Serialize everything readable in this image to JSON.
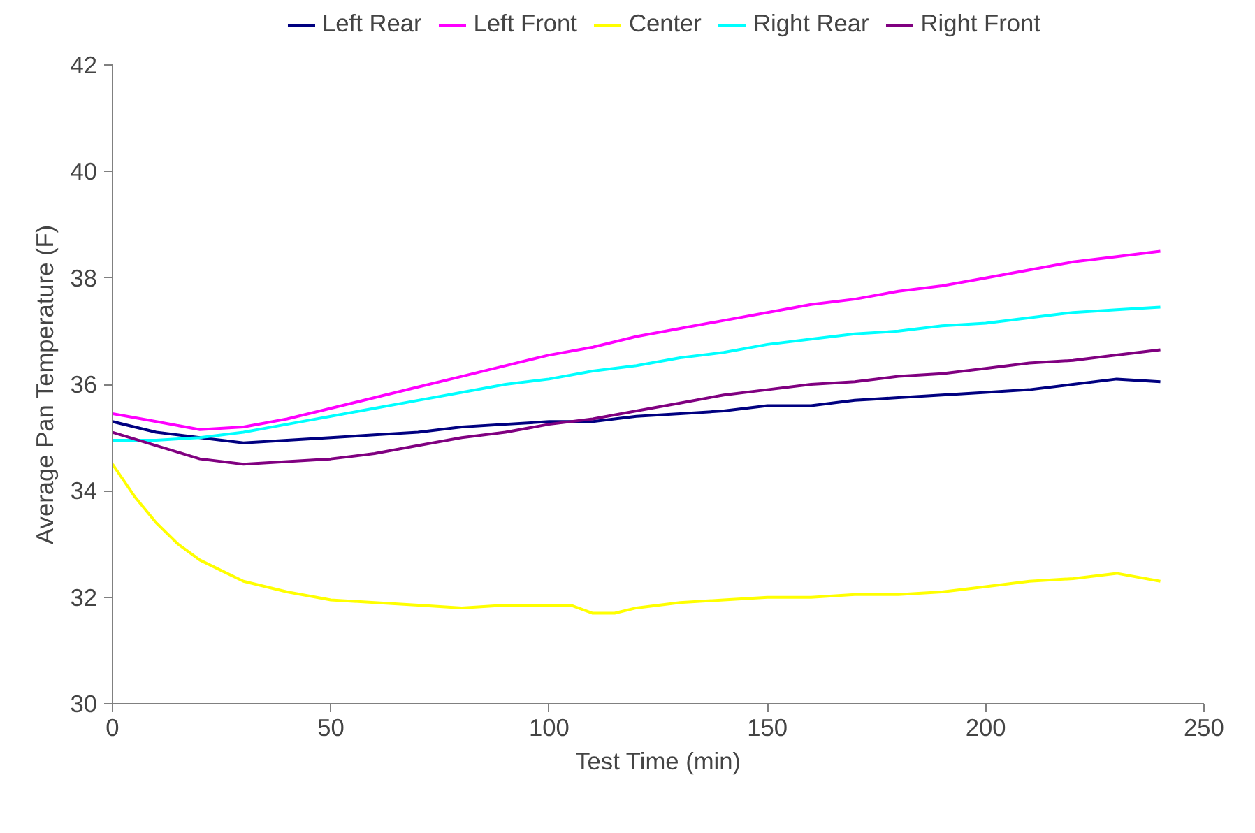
{
  "chart_data": {
    "type": "line",
    "xlabel": "Test Time (min)",
    "ylabel": "Average Pan Temperature (F)",
    "xlim": [
      0,
      250
    ],
    "xticks": [
      0,
      50,
      100,
      150,
      200,
      250
    ],
    "ylim": [
      30,
      42
    ],
    "yticks": [
      30,
      32,
      34,
      36,
      38,
      40,
      42
    ],
    "grid": false,
    "legend": "top",
    "marker": "none",
    "line_style": "solid",
    "series": [
      {
        "name": "Left Rear",
        "color": "#000080",
        "x": [
          0,
          10,
          20,
          30,
          40,
          50,
          60,
          70,
          80,
          90,
          100,
          110,
          120,
          130,
          140,
          150,
          160,
          170,
          180,
          190,
          200,
          210,
          220,
          230,
          240
        ],
        "values": [
          35.3,
          35.1,
          35.0,
          34.9,
          34.95,
          35.0,
          35.05,
          35.1,
          35.2,
          35.25,
          35.3,
          35.3,
          35.4,
          35.45,
          35.5,
          35.6,
          35.6,
          35.7,
          35.75,
          35.8,
          35.85,
          35.9,
          36.0,
          36.1,
          36.05
        ]
      },
      {
        "name": "Left Front",
        "color": "#ff00ff",
        "x": [
          0,
          10,
          20,
          30,
          40,
          50,
          60,
          70,
          80,
          90,
          100,
          110,
          120,
          130,
          140,
          150,
          160,
          170,
          180,
          190,
          200,
          210,
          220,
          230,
          240
        ],
        "values": [
          35.45,
          35.3,
          35.15,
          35.2,
          35.35,
          35.55,
          35.75,
          35.95,
          36.15,
          36.35,
          36.55,
          36.7,
          36.9,
          37.05,
          37.2,
          37.35,
          37.5,
          37.6,
          37.75,
          37.85,
          38.0,
          38.15,
          38.3,
          38.4,
          38.5
        ]
      },
      {
        "name": "Center",
        "color": "#ffff00",
        "x": [
          0,
          5,
          10,
          15,
          20,
          25,
          30,
          40,
          50,
          60,
          70,
          80,
          90,
          100,
          105,
          110,
          115,
          120,
          130,
          140,
          150,
          160,
          170,
          180,
          190,
          200,
          210,
          220,
          230,
          240
        ],
        "values": [
          34.5,
          33.9,
          33.4,
          33.0,
          32.7,
          32.5,
          32.3,
          32.1,
          31.95,
          31.9,
          31.85,
          31.8,
          31.85,
          31.85,
          31.85,
          31.7,
          31.7,
          31.8,
          31.9,
          31.95,
          32.0,
          32.0,
          32.05,
          32.05,
          32.1,
          32.2,
          32.3,
          32.35,
          32.45,
          32.3
        ]
      },
      {
        "name": "Right Rear",
        "color": "#00ffff",
        "x": [
          0,
          10,
          20,
          30,
          40,
          50,
          60,
          70,
          80,
          90,
          100,
          110,
          120,
          130,
          140,
          150,
          160,
          170,
          180,
          190,
          200,
          210,
          220,
          230,
          240
        ],
        "values": [
          34.95,
          34.95,
          35.0,
          35.1,
          35.25,
          35.4,
          35.55,
          35.7,
          35.85,
          36.0,
          36.1,
          36.25,
          36.35,
          36.5,
          36.6,
          36.75,
          36.85,
          36.95,
          37.0,
          37.1,
          37.15,
          37.25,
          37.35,
          37.4,
          37.45
        ]
      },
      {
        "name": "Right Front",
        "color": "#800080",
        "x": [
          0,
          10,
          20,
          30,
          40,
          50,
          60,
          70,
          80,
          90,
          100,
          110,
          120,
          130,
          140,
          150,
          160,
          170,
          180,
          190,
          200,
          210,
          220,
          230,
          240
        ],
        "values": [
          35.1,
          34.85,
          34.6,
          34.5,
          34.55,
          34.6,
          34.7,
          34.85,
          35.0,
          35.1,
          35.25,
          35.35,
          35.5,
          35.65,
          35.8,
          35.9,
          36.0,
          36.05,
          36.15,
          36.2,
          36.3,
          36.4,
          36.45,
          36.55,
          36.65
        ]
      }
    ]
  }
}
